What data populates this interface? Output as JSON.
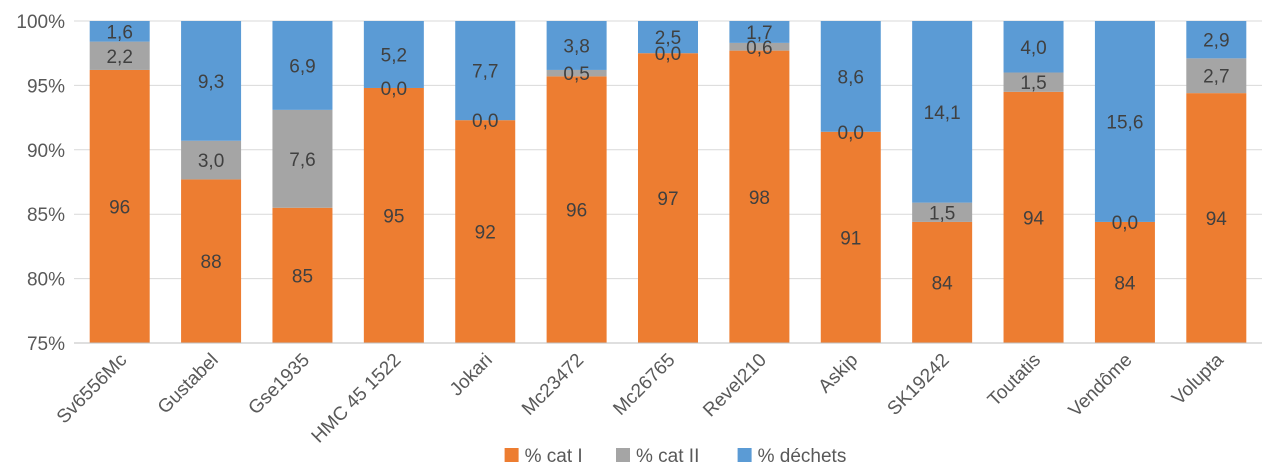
{
  "chart_data": {
    "type": "bar",
    "stacked": "percent",
    "title": "",
    "xlabel": "",
    "ylabel": "",
    "ylim": [
      75,
      100
    ],
    "yticks": [
      "75%",
      "80%",
      "85%",
      "90%",
      "95%",
      "100%"
    ],
    "categories": [
      "Sv6556Mc",
      "Gustabel",
      "Gse1935",
      "HMC 45 1522",
      "Jokari",
      "Mc23472",
      "Mc26765",
      "Revel210",
      "Askip",
      "SK19242",
      "Toutatis",
      "Vendôme",
      "Volupta"
    ],
    "series": [
      {
        "name": "% cat I",
        "color": "#ED7D31",
        "values": [
          96.2,
          87.7,
          85.5,
          94.8,
          92.3,
          95.7,
          97.5,
          97.7,
          91.4,
          84.4,
          94.5,
          84.4,
          94.4
        ],
        "labels": [
          "96",
          "88",
          "85",
          "95",
          "92",
          "96",
          "97",
          "98",
          "91",
          "84",
          "94",
          "84",
          "94"
        ]
      },
      {
        "name": "% cat II",
        "color": "#A5A5A5",
        "values": [
          2.2,
          3.0,
          7.6,
          0.0,
          0.0,
          0.5,
          0.0,
          0.6,
          0.0,
          1.5,
          1.5,
          0.0,
          2.7
        ],
        "labels": [
          "2,2",
          "3,0",
          "7,6",
          "0,0",
          "0,0",
          "0,5",
          "0,0",
          "0,6",
          "0,0",
          "1,5",
          "1,5",
          "0,0",
          "2,7"
        ]
      },
      {
        "name": "% déchets",
        "color": "#5B9BD5",
        "values": [
          1.6,
          9.3,
          6.9,
          5.2,
          7.7,
          3.8,
          2.5,
          1.7,
          8.6,
          14.1,
          4.0,
          15.6,
          2.9
        ],
        "labels": [
          "1,6",
          "9,3",
          "6,9",
          "5,2",
          "7,7",
          "3,8",
          "2,5",
          "1,7",
          "8,6",
          "14,1",
          "4,0",
          "15,6",
          "2,9"
        ]
      }
    ],
    "grid": true,
    "legend": "bottom"
  }
}
